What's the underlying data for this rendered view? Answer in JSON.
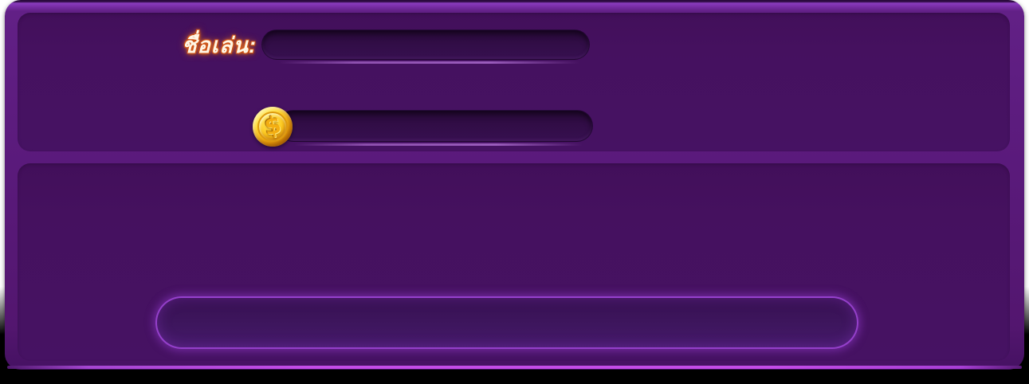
{
  "profile": {
    "nickname_label": "ชื่อเล่น:",
    "nickname_value": "",
    "balance_value": ""
  },
  "coin": {
    "icon_name": "dollar-coin-icon",
    "symbol": "$"
  },
  "action_box": {
    "value": ""
  },
  "colors": {
    "frame_purple": "#5a1a7b",
    "panel_purple": "#45115f",
    "field_dark": "#310d46",
    "bottom_edge_line": "#c44ce8",
    "box_glow_border": "#a448de",
    "label_fill": "#fff6e4",
    "label_glow": "#ff8a1e",
    "coin_gold": "#fdc81d",
    "coin_rim": "#c87708"
  }
}
